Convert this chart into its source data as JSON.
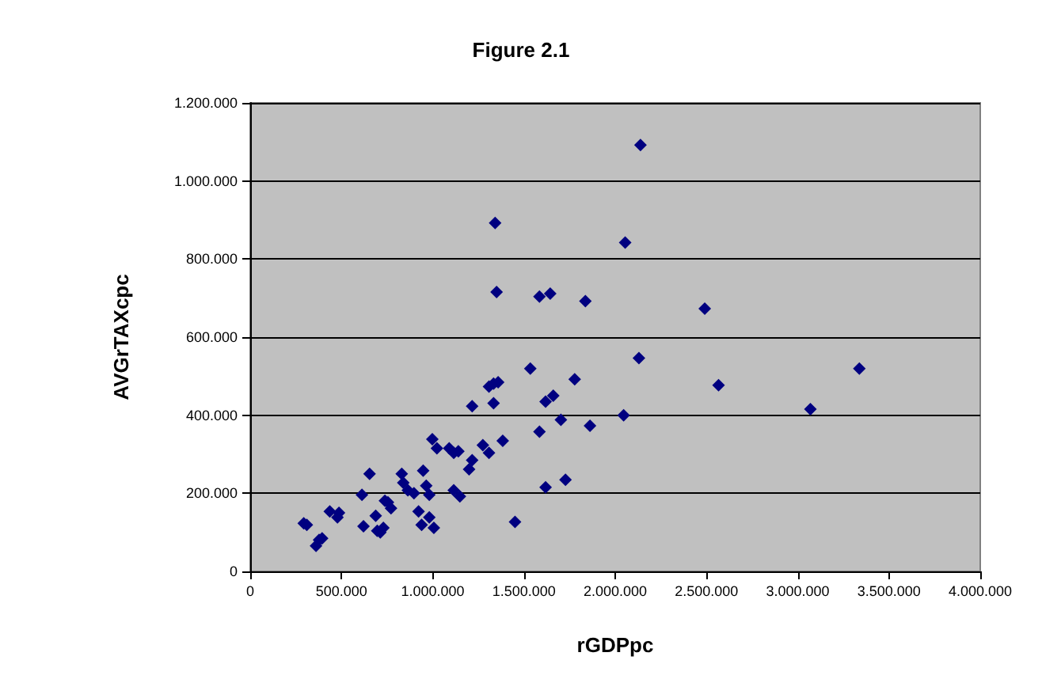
{
  "chart_data": {
    "type": "scatter",
    "title": "Figure 2.1",
    "xlabel": "rGDPpc",
    "ylabel": "AVGrTAXcpc",
    "x": [
      293500,
      310300,
      394100,
      360600,
      377400,
      436100,
      486400,
      478000,
      612200,
      654100,
      620600,
      687700,
      696000,
      712800,
      729600,
      738000,
      771500,
      754700,
      830200,
      838600,
      863800,
      897300,
      947600,
      964400,
      981200,
      922500,
      939300,
      981200,
      1006300,
      997900,
      1023100,
      1090200,
      1115300,
      1140500,
      1115300,
      1148900,
      1216000,
      1199200,
      1274700,
      1308200,
      1383700,
      1216000,
      1333400,
      1308200,
      1333400,
      1358500,
      1450800,
      2054600,
      1350100,
      1585000,
      1643700,
      1836500,
      2490600,
      2130000,
      2566100,
      1534600,
      1777800,
      1660400,
      1618500,
      1702400,
      2046200,
      1861700,
      1585000,
      1618500,
      1727500,
      3069300,
      3337600,
      2138400,
      1341800
    ],
    "series": [
      {
        "color": "#000080",
        "values": [
          123000,
          119200,
          84600,
          65400,
          80800,
          153800,
          150000,
          138500,
          196100,
          250000,
          115400,
          142300,
          103800,
          100000,
          111500,
          180800,
          161500,
          176900,
          250000,
          226900,
          207700,
          200000,
          257700,
          219200,
          196100,
          153800,
          119200,
          138500,
          111500,
          338400,
          315400,
          315400,
          303800,
          307700,
          207700,
          192300,
          284600,
          261500,
          323100,
          303800,
          334600,
          423100,
          430800,
          473100,
          480800,
          484600,
          126900,
          842300,
          715400,
          703800,
          711500,
          692300,
          673000,
          546100,
          476900,
          519200,
          492300,
          450000,
          434600,
          388400,
          400000,
          373100,
          357700,
          215400,
          234600,
          415400,
          519200,
          1092300,
          892300
        ]
      }
    ],
    "xlim": [
      0,
      4000000
    ],
    "ylim": [
      0,
      1200000
    ],
    "xticks": [
      0,
      {
        "value": 500000,
        "label": "500.000"
      },
      {
        "value": 1000000,
        "label": "1.000.000"
      },
      {
        "value": 1500000,
        "label": "1.500.000"
      },
      {
        "value": 2000000,
        "label": "2.000.000"
      },
      {
        "value": 2500000,
        "label": "2.500.000"
      },
      {
        "value": 3000000,
        "label": "3.000.000"
      },
      {
        "value": 3500000,
        "label": "3.500.000"
      },
      {
        "value": 4000000,
        "label": "4.000.000"
      }
    ],
    "yticks": [
      0,
      {
        "value": 200000,
        "label": "200.000"
      },
      {
        "value": 400000,
        "label": "400.000"
      },
      {
        "value": 600000,
        "label": "600.000"
      },
      {
        "value": 800000,
        "label": "800.000"
      },
      {
        "value": 1000000,
        "label": "1.000.000"
      },
      {
        "value": 1200000,
        "label": "1.200.000"
      }
    ],
    "grid": "y",
    "marker": "diamond"
  }
}
